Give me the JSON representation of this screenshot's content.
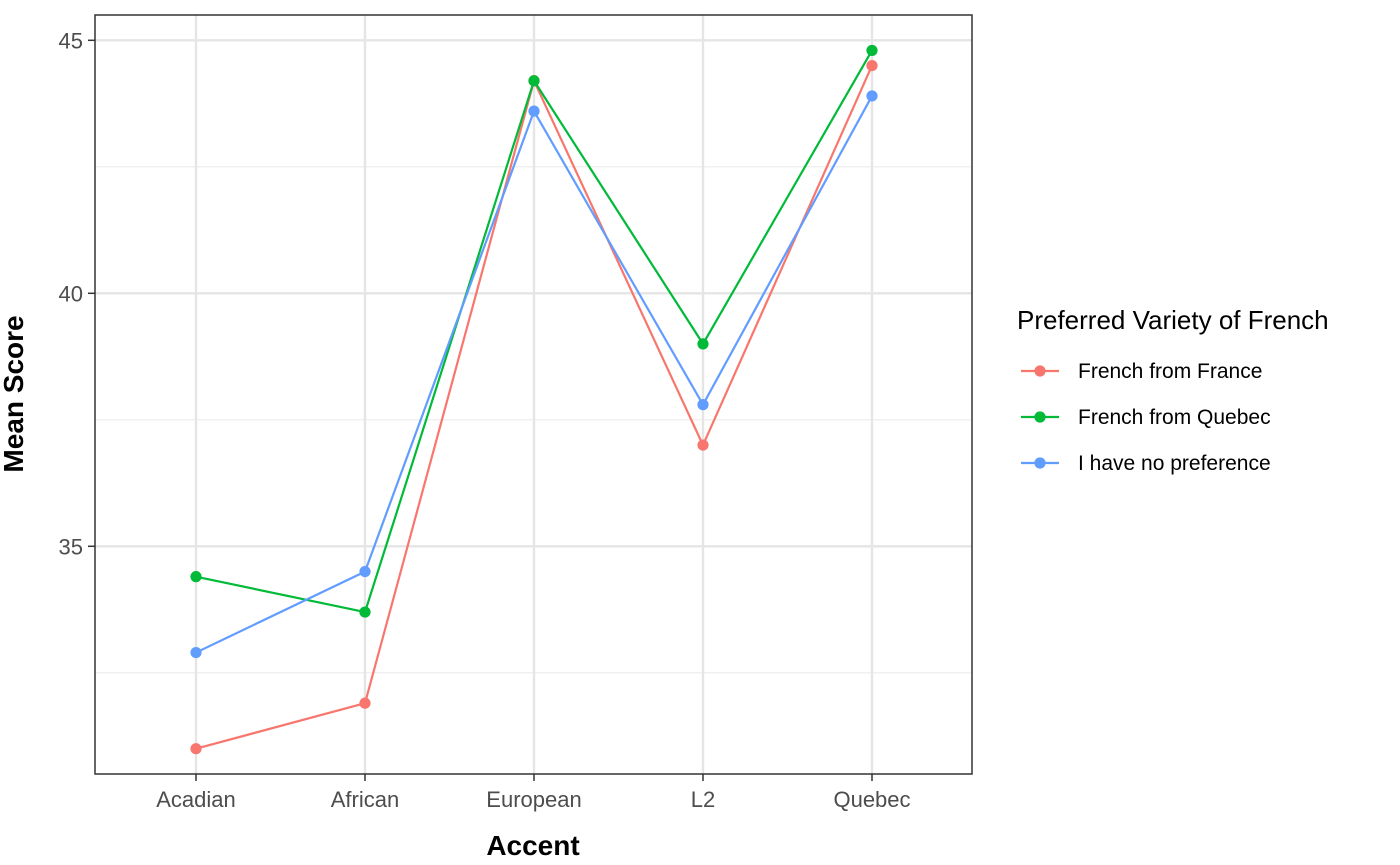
{
  "chart_data": {
    "type": "line",
    "title": "",
    "xlabel": "Accent",
    "ylabel": "Mean Score",
    "categories": [
      "Acadian",
      "African",
      "European",
      "L2",
      "Quebec"
    ],
    "ylim": [
      30.5,
      45.5
    ],
    "yticks": [
      35,
      40,
      45
    ],
    "grid": true,
    "legend": {
      "title": "Preferred Variety of French",
      "position": "right"
    },
    "series": [
      {
        "name": "French from France",
        "color": "#F8766D",
        "values": [
          31.0,
          31.9,
          44.2,
          37.0,
          44.5
        ]
      },
      {
        "name": "French from Quebec",
        "color": "#00BA38",
        "values": [
          34.4,
          33.7,
          44.2,
          39.0,
          44.8
        ]
      },
      {
        "name": "I have no preference",
        "color": "#619CFF",
        "values": [
          32.9,
          34.5,
          43.6,
          37.8,
          43.9
        ]
      }
    ]
  }
}
